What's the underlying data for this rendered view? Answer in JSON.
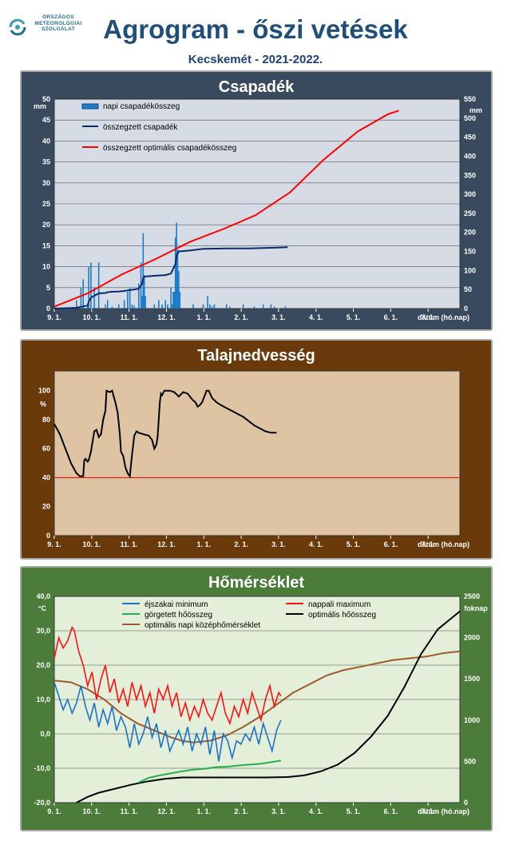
{
  "logo": {
    "line1": "ORSZÁGOS",
    "line2": "METEOROLÓGIAI",
    "line3": "SZOLGÁLAT"
  },
  "header": {
    "title": "Agrogram - őszi vetések",
    "subtitle": "Kecskemét - 2021-2022."
  },
  "colors": {
    "panel1": "#3a4a5e",
    "panel2": "#6b3a0b",
    "panel3": "#4b7c3a",
    "plot1": "#d6dce5",
    "plot2": "#dec4a2",
    "plot3": "#e3efd9"
  },
  "chart_data": [
    {
      "type": "bar",
      "title": "Csapadék",
      "xlabel": "dátum (hó.nap)",
      "ylabel_left": "mm",
      "ylabel_right": "mm",
      "x_ticks": [
        "9. 1.",
        "10. 1.",
        "11. 1.",
        "12. 1.",
        "1. 1.",
        "2. 1.",
        "3. 1.",
        "4. 1.",
        "5. 1.",
        "6. 1.",
        "7. 1."
      ],
      "ylim_left": [
        0,
        50
      ],
      "yticks_left": [
        0,
        5,
        10,
        15,
        20,
        25,
        30,
        35,
        40,
        45,
        50
      ],
      "ylim_right": [
        0,
        550
      ],
      "yticks_right": [
        0,
        50,
        100,
        150,
        200,
        250,
        300,
        350,
        400,
        450,
        500,
        550
      ],
      "legend": [
        "napi csapadékösszeg",
        "összegzett csapadék",
        "összegzett optimális csapadékösszeg"
      ],
      "daily_precip": [
        [
          20,
          2
        ],
        [
          24,
          5
        ],
        [
          26,
          7
        ],
        [
          30,
          1
        ],
        [
          31,
          10
        ],
        [
          33,
          11
        ],
        [
          36,
          5
        ],
        [
          40,
          11
        ],
        [
          46,
          1
        ],
        [
          48,
          2
        ],
        [
          52,
          0.5
        ],
        [
          58,
          1
        ],
        [
          63,
          2
        ],
        [
          66,
          4
        ],
        [
          68,
          5
        ],
        [
          70,
          1
        ],
        [
          72,
          0.7
        ],
        [
          76,
          6
        ],
        [
          78,
          11
        ],
        [
          79,
          3
        ],
        [
          80,
          18
        ],
        [
          81,
          8
        ],
        [
          82,
          3
        ],
        [
          90,
          1
        ],
        [
          94,
          2
        ],
        [
          97,
          1
        ],
        [
          100,
          2
        ],
        [
          102,
          1
        ],
        [
          105,
          5
        ],
        [
          106,
          1
        ],
        [
          107,
          4
        ],
        [
          108,
          4
        ],
        [
          109,
          17
        ],
        [
          110,
          20.5
        ],
        [
          111,
          14
        ],
        [
          112,
          9
        ],
        [
          113,
          4
        ],
        [
          125,
          1
        ],
        [
          134,
          1
        ],
        [
          138,
          3
        ],
        [
          140,
          1
        ],
        [
          142,
          0.5
        ],
        [
          144,
          1
        ],
        [
          155,
          1
        ],
        [
          158,
          0.5
        ],
        [
          170,
          1
        ],
        [
          180,
          0.5
        ],
        [
          188,
          1
        ],
        [
          195,
          1
        ],
        [
          198,
          0.5
        ],
        [
          208,
          0.5
        ]
      ],
      "cumulative_precip": [
        [
          0,
          0
        ],
        [
          20,
          2
        ],
        [
          30,
          8
        ],
        [
          31,
          18
        ],
        [
          33,
          29
        ],
        [
          40,
          40
        ],
        [
          46,
          41
        ],
        [
          48,
          43
        ],
        [
          52,
          44
        ],
        [
          58,
          45
        ],
        [
          62,
          46
        ],
        [
          76,
          52
        ],
        [
          79,
          66
        ],
        [
          80,
          80
        ],
        [
          81,
          84
        ],
        [
          90,
          86
        ],
        [
          100,
          88
        ],
        [
          105,
          92
        ],
        [
          109,
          117
        ],
        [
          110,
          138
        ],
        [
          112,
          150
        ],
        [
          120,
          152
        ],
        [
          135,
          157
        ],
        [
          155,
          158
        ],
        [
          175,
          158
        ],
        [
          200,
          160
        ],
        [
          210,
          161
        ]
      ],
      "optimal_precip": [
        [
          0,
          5
        ],
        [
          30,
          40
        ],
        [
          61,
          90
        ],
        [
          91,
          130
        ],
        [
          122,
          175
        ],
        [
          153,
          210
        ],
        [
          181,
          245
        ],
        [
          212,
          305
        ],
        [
          242,
          390
        ],
        [
          273,
          465
        ],
        [
          300,
          510
        ],
        [
          310,
          520
        ]
      ]
    },
    {
      "type": "line",
      "title": "Talajnedvesség",
      "xlabel": "dátum (hó.nap)",
      "ylabel": "%",
      "x_ticks": [
        "9. 1.",
        "10. 1.",
        "11. 1.",
        "12. 1.",
        "1. 1.",
        "2. 1.",
        "3. 1.",
        "4. 1.",
        "5. 1.",
        "6. 1.",
        "7. 1."
      ],
      "ylim": [
        0,
        100
      ],
      "yticks": [
        0,
        20,
        40,
        60,
        80,
        100
      ],
      "threshold": 40,
      "soil_moisture": [
        [
          0,
          77
        ],
        [
          5,
          70
        ],
        [
          10,
          60
        ],
        [
          15,
          50
        ],
        [
          20,
          43
        ],
        [
          23,
          41
        ],
        [
          26,
          41
        ],
        [
          27,
          52
        ],
        [
          28,
          53
        ],
        [
          30,
          51
        ],
        [
          31,
          52
        ],
        [
          33,
          58
        ],
        [
          36,
          72
        ],
        [
          38,
          73
        ],
        [
          40,
          68
        ],
        [
          42,
          70
        ],
        [
          44,
          80
        ],
        [
          46,
          86
        ],
        [
          47,
          100
        ],
        [
          50,
          99
        ],
        [
          52,
          100
        ],
        [
          55,
          92
        ],
        [
          57,
          85
        ],
        [
          59,
          70
        ],
        [
          60,
          58
        ],
        [
          62,
          55
        ],
        [
          64,
          47
        ],
        [
          66,
          43
        ],
        [
          68,
          41
        ],
        [
          70,
          56
        ],
        [
          72,
          69
        ],
        [
          74,
          72
        ],
        [
          76,
          71
        ],
        [
          80,
          70
        ],
        [
          85,
          69
        ],
        [
          88,
          66
        ],
        [
          90,
          60
        ],
        [
          92,
          63
        ],
        [
          93,
          68
        ],
        [
          94,
          80
        ],
        [
          95,
          92
        ],
        [
          96,
          98
        ],
        [
          97,
          97
        ],
        [
          99,
          100
        ],
        [
          104,
          100
        ],
        [
          108,
          99
        ],
        [
          112,
          96
        ],
        [
          116,
          99
        ],
        [
          120,
          98
        ],
        [
          124,
          94
        ],
        [
          127,
          92
        ],
        [
          129,
          89
        ],
        [
          131,
          90
        ],
        [
          133,
          92
        ],
        [
          135,
          96
        ],
        [
          137,
          100
        ],
        [
          139,
          100
        ],
        [
          142,
          95
        ],
        [
          146,
          92
        ],
        [
          150,
          90
        ],
        [
          155,
          88
        ],
        [
          160,
          86
        ],
        [
          165,
          84
        ],
        [
          170,
          82
        ],
        [
          175,
          79
        ],
        [
          180,
          76
        ],
        [
          185,
          74
        ],
        [
          190,
          72
        ],
        [
          195,
          71
        ],
        [
          200,
          71
        ]
      ]
    },
    {
      "type": "line",
      "title": "Hőmérséklet",
      "xlabel": "dátum (hó.nap)",
      "ylabel_left": "°C",
      "ylabel_right": "foknap",
      "x_ticks": [
        "9. 1.",
        "10. 1.",
        "11. 1.",
        "12. 1.",
        "1. 1.",
        "2. 1.",
        "3. 1.",
        "4. 1.",
        "5. 1.",
        "6. 1.",
        "7. 1."
      ],
      "ylim_left": [
        -20,
        40
      ],
      "yticks_left": [
        "-20,0",
        "-10,0",
        "0,0",
        "10,0",
        "20,0",
        "30,0",
        "40,0"
      ],
      "ylim_right": [
        0,
        2500
      ],
      "yticks_right": [
        0,
        500,
        1000,
        1500,
        2000,
        2500
      ],
      "legend": [
        "éjszakai minimum",
        "nappali maximum",
        "görgetett hőösszeg",
        "optimális hőösszeg",
        "optimális napi középhőmérséklet"
      ],
      "nightly_min": [
        [
          0,
          15
        ],
        [
          4,
          11
        ],
        [
          8,
          7
        ],
        [
          12,
          10
        ],
        [
          16,
          6
        ],
        [
          20,
          9
        ],
        [
          24,
          14
        ],
        [
          28,
          8
        ],
        [
          32,
          4
        ],
        [
          36,
          9
        ],
        [
          40,
          2
        ],
        [
          44,
          7
        ],
        [
          48,
          3
        ],
        [
          52,
          8
        ],
        [
          56,
          1
        ],
        [
          60,
          5
        ],
        [
          64,
          2
        ],
        [
          68,
          -4
        ],
        [
          72,
          3
        ],
        [
          76,
          -3
        ],
        [
          80,
          0
        ],
        [
          84,
          5
        ],
        [
          88,
          -1
        ],
        [
          92,
          3
        ],
        [
          96,
          -4
        ],
        [
          100,
          1
        ],
        [
          104,
          -5
        ],
        [
          108,
          -2
        ],
        [
          112,
          1
        ],
        [
          116,
          -3
        ],
        [
          120,
          2
        ],
        [
          124,
          -5
        ],
        [
          128,
          0
        ],
        [
          132,
          -3
        ],
        [
          136,
          2
        ],
        [
          140,
          -6
        ],
        [
          144,
          1
        ],
        [
          148,
          -8
        ],
        [
          152,
          0
        ],
        [
          156,
          -2
        ],
        [
          160,
          -7
        ],
        [
          164,
          -2
        ],
        [
          168,
          -3
        ],
        [
          172,
          0
        ],
        [
          176,
          -2
        ],
        [
          180,
          2
        ],
        [
          184,
          -3
        ],
        [
          188,
          3
        ],
        [
          192,
          -1
        ],
        [
          196,
          -5
        ],
        [
          200,
          1
        ],
        [
          204,
          4
        ]
      ],
      "daily_max": [
        [
          0,
          22
        ],
        [
          4,
          28
        ],
        [
          8,
          25
        ],
        [
          12,
          27
        ],
        [
          16,
          31
        ],
        [
          18,
          30
        ],
        [
          22,
          24
        ],
        [
          26,
          20
        ],
        [
          30,
          14
        ],
        [
          34,
          18
        ],
        [
          38,
          10
        ],
        [
          42,
          16
        ],
        [
          46,
          20
        ],
        [
          50,
          12
        ],
        [
          54,
          16
        ],
        [
          58,
          9
        ],
        [
          62,
          13
        ],
        [
          66,
          8
        ],
        [
          70,
          15
        ],
        [
          74,
          10
        ],
        [
          78,
          14
        ],
        [
          82,
          8
        ],
        [
          86,
          12
        ],
        [
          90,
          6
        ],
        [
          94,
          13
        ],
        [
          98,
          10
        ],
        [
          102,
          14
        ],
        [
          106,
          8
        ],
        [
          110,
          12
        ],
        [
          114,
          5
        ],
        [
          118,
          9
        ],
        [
          122,
          4
        ],
        [
          126,
          8
        ],
        [
          130,
          5
        ],
        [
          134,
          10
        ],
        [
          138,
          6
        ],
        [
          142,
          4
        ],
        [
          146,
          8
        ],
        [
          150,
          12
        ],
        [
          154,
          6
        ],
        [
          158,
          3
        ],
        [
          162,
          8
        ],
        [
          166,
          5
        ],
        [
          170,
          10
        ],
        [
          174,
          6
        ],
        [
          178,
          12
        ],
        [
          182,
          8
        ],
        [
          186,
          4
        ],
        [
          190,
          10
        ],
        [
          194,
          14
        ],
        [
          198,
          8
        ],
        [
          202,
          12
        ],
        [
          204,
          11
        ]
      ],
      "rolling_heatsum": [
        [
          76,
          245
        ],
        [
          85,
          300
        ],
        [
          95,
          330
        ],
        [
          105,
          355
        ],
        [
          115,
          380
        ],
        [
          125,
          400
        ],
        [
          135,
          410
        ],
        [
          145,
          430
        ],
        [
          155,
          435
        ],
        [
          165,
          450
        ],
        [
          175,
          460
        ],
        [
          185,
          470
        ],
        [
          195,
          490
        ],
        [
          204,
          510
        ]
      ],
      "optimal_heatsum": [
        [
          20,
          0
        ],
        [
          30,
          70
        ],
        [
          40,
          120
        ],
        [
          55,
          170
        ],
        [
          70,
          220
        ],
        [
          85,
          260
        ],
        [
          100,
          290
        ],
        [
          115,
          305
        ],
        [
          130,
          305
        ],
        [
          150,
          305
        ],
        [
          170,
          305
        ],
        [
          190,
          305
        ],
        [
          210,
          310
        ],
        [
          225,
          330
        ],
        [
          240,
          380
        ],
        [
          255,
          460
        ],
        [
          270,
          600
        ],
        [
          285,
          800
        ],
        [
          300,
          1050
        ],
        [
          315,
          1400
        ],
        [
          330,
          1800
        ],
        [
          345,
          2100
        ],
        [
          365,
          2320
        ]
      ],
      "optimal_daily_mean": [
        [
          0,
          15.5
        ],
        [
          15,
          15
        ],
        [
          30,
          13
        ],
        [
          45,
          10
        ],
        [
          60,
          6
        ],
        [
          75,
          3
        ],
        [
          90,
          1
        ],
        [
          105,
          -1
        ],
        [
          115,
          -2
        ],
        [
          125,
          -2.5
        ],
        [
          140,
          -2
        ],
        [
          155,
          -0.5
        ],
        [
          170,
          2
        ],
        [
          185,
          5
        ],
        [
          200,
          8.5
        ],
        [
          215,
          12
        ],
        [
          230,
          14.5
        ],
        [
          245,
          17
        ],
        [
          260,
          18.5
        ],
        [
          275,
          19.5
        ],
        [
          290,
          20.5
        ],
        [
          305,
          21.5
        ],
        [
          320,
          22
        ],
        [
          335,
          22.5
        ],
        [
          350,
          23.5
        ],
        [
          365,
          24
        ]
      ]
    }
  ]
}
